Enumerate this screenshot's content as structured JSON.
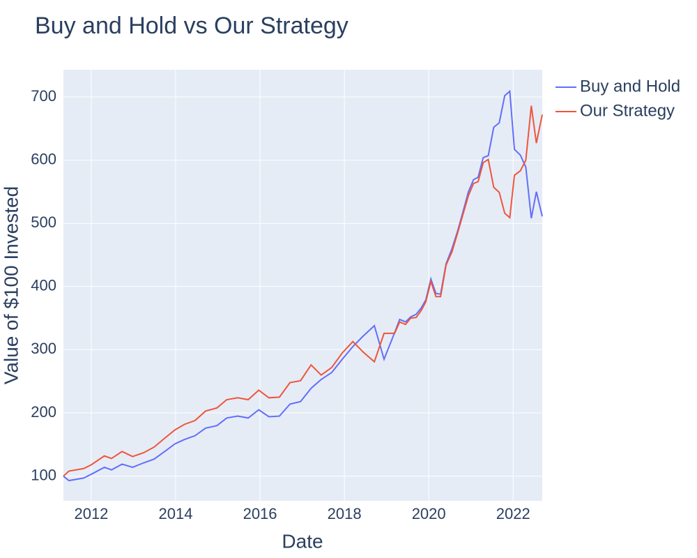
{
  "chart_data": {
    "type": "line",
    "title": "Buy and Hold vs Our Strategy",
    "x_label": "Date",
    "y_label": "Value of $100 Invested",
    "x": [
      2011.34,
      2011.47,
      2011.82,
      2012.0,
      2012.31,
      2012.48,
      2012.73,
      2012.98,
      2013.24,
      2013.49,
      2013.74,
      2013.98,
      2014.21,
      2014.46,
      2014.71,
      2014.98,
      2015.21,
      2015.47,
      2015.72,
      2015.97,
      2016.21,
      2016.46,
      2016.71,
      2016.96,
      2017.21,
      2017.45,
      2017.7,
      2017.95,
      2018.2,
      2018.45,
      2018.71,
      2018.94,
      2019.19,
      2019.31,
      2019.45,
      2019.57,
      2019.7,
      2019.82,
      2019.93,
      2020.05,
      2020.17,
      2020.28,
      2020.41,
      2020.55,
      2020.68,
      2020.81,
      2020.94,
      2021.06,
      2021.17,
      2021.29,
      2021.41,
      2021.54,
      2021.67,
      2021.8,
      2021.92,
      2022.03,
      2022.17,
      2022.3,
      2022.43,
      2022.55,
      2022.69
    ],
    "series": [
      {
        "name": "Buy and Hold",
        "color": "#636efa",
        "values": [
          100,
          93,
          97,
          103,
          114,
          110,
          119,
          114,
          121,
          127,
          139,
          151,
          158,
          164,
          176,
          180,
          192,
          195,
          192,
          205,
          194,
          195,
          214,
          218,
          239,
          253,
          264,
          285,
          305,
          322,
          338,
          285,
          327,
          348,
          344,
          352,
          356,
          366,
          379,
          412,
          389,
          388,
          436,
          460,
          487,
          518,
          550,
          569,
          573,
          604,
          607,
          652,
          659,
          702,
          709,
          617,
          608,
          589,
          508,
          550,
          511
        ]
      },
      {
        "name": "Our Strategy",
        "color": "#ef553b",
        "values": [
          100,
          108,
          112,
          118,
          132,
          128,
          139,
          131,
          137,
          146,
          160,
          173,
          182,
          188,
          203,
          208,
          221,
          224,
          221,
          236,
          224,
          225,
          248,
          251,
          276,
          260,
          272,
          295,
          313,
          296,
          281,
          326,
          326,
          344,
          340,
          350,
          351,
          362,
          376,
          408,
          384,
          384,
          434,
          455,
          484,
          514,
          544,
          563,
          566,
          596,
          601,
          557,
          549,
          516,
          509,
          576,
          583,
          600,
          686,
          627,
          672
        ]
      }
    ],
    "xlim": [
      2011.34,
      2022.69
    ],
    "xticks": [
      2012,
      2014,
      2016,
      2018,
      2020,
      2022
    ],
    "ylim": [
      61,
      743
    ],
    "yticks": [
      100,
      200,
      300,
      400,
      500,
      600,
      700
    ],
    "grid": true,
    "legend": "right"
  }
}
